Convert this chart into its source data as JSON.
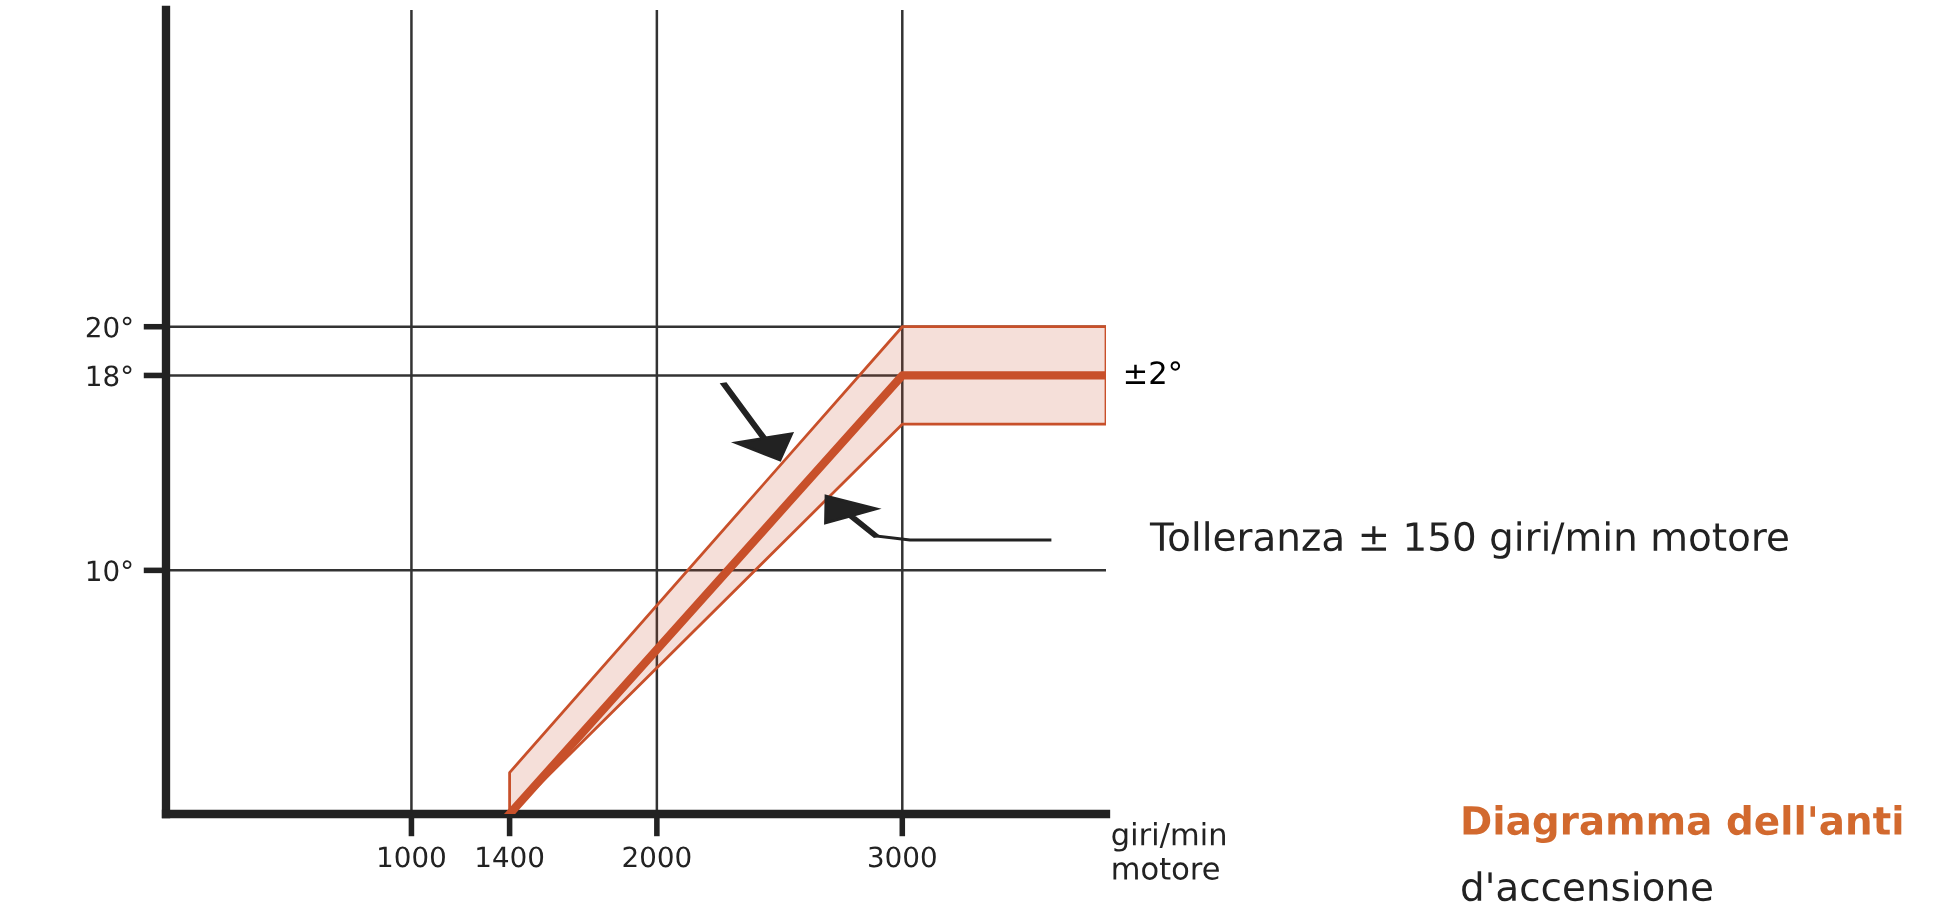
{
  "chart_data": {
    "type": "line",
    "title": "Diagramma dell'anti",
    "subtitle": "d'accensione",
    "xlabel": "giri/min\nmotore",
    "x": [
      1400,
      3000,
      3830
    ],
    "series": [
      {
        "color": "#c8502a",
        "values": [
          0,
          18,
          18
        ],
        "lower": [
          0,
          16,
          16
        ],
        "upper": [
          1.7,
          20,
          20
        ]
      }
    ],
    "xlim": [
      0,
      3830
    ],
    "ylim": [
      0,
      33
    ],
    "xticks": [
      1000,
      1400,
      2000,
      3000
    ],
    "yticks": [
      {
        "value": 10,
        "label": "10°"
      },
      {
        "value": 18,
        "label": "18°"
      },
      {
        "value": 20,
        "label": "20°"
      }
    ],
    "ref_lines": [
      {
        "axis": "x",
        "value": 1000
      },
      {
        "axis": "x",
        "value": 2000
      },
      {
        "axis": "x",
        "value": 3000
      }
    ],
    "annotations": [
      {
        "text": "±2°",
        "x": 3830,
        "y": 18
      },
      "Tolleranza ± 150 giri/min motore"
    ],
    "grid": "y",
    "marker": "none",
    "line_style": "solid"
  }
}
